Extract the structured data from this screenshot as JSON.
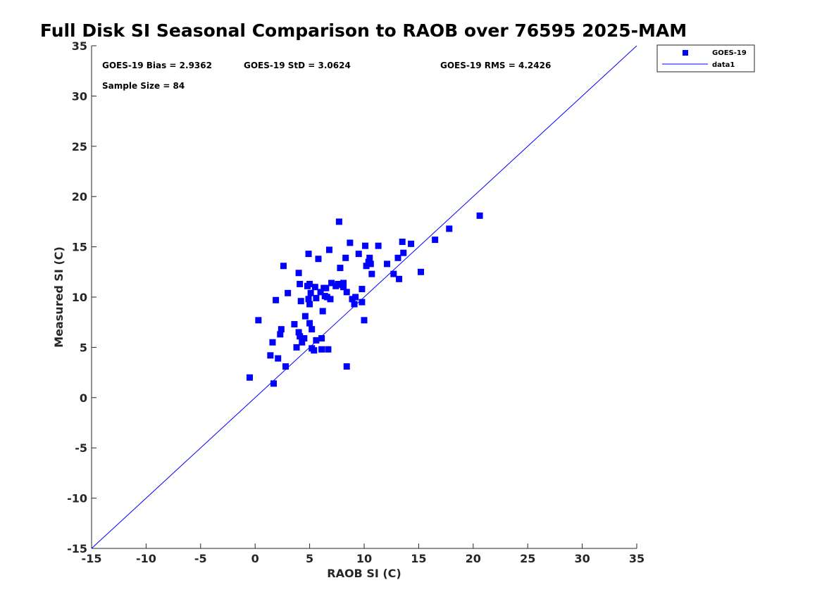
{
  "chart_data": {
    "type": "scatter",
    "title": "Full Disk SI Seasonal Comparison to RAOB over 76595 2025-MAM",
    "xlabel": "RAOB SI (C)",
    "ylabel": "Measured SI (C)",
    "xlim": [
      -15,
      35
    ],
    "ylim": [
      -15,
      35
    ],
    "xticks": [
      -15,
      -10,
      -5,
      0,
      5,
      10,
      15,
      20,
      25,
      30,
      35
    ],
    "yticks": [
      -15,
      -10,
      -5,
      0,
      5,
      10,
      15,
      20,
      25,
      30,
      35
    ],
    "xtick_labels": [
      "-15",
      "-10",
      "-5",
      "0",
      "5",
      "10",
      "15",
      "20",
      "25",
      "30",
      "35"
    ],
    "ytick_labels": [
      "-15",
      "-10",
      "-5",
      "0",
      "5",
      "10",
      "15",
      "20",
      "25",
      "30",
      "35"
    ],
    "grid": false,
    "legend_position": "top-right",
    "annotations": {
      "bias": "GOES-19 Bias = 2.9362",
      "std": "GOES-19 StD = 3.0624",
      "rms": "GOES-19 RMS = 4.2426",
      "sample": "Sample Size = 84"
    },
    "series": [
      {
        "name": "GOES-19",
        "kind": "marker",
        "marker": "square",
        "color": "#0000ff",
        "points": [
          [
            -0.5,
            2.0
          ],
          [
            0.3,
            7.7
          ],
          [
            1.4,
            4.2
          ],
          [
            1.6,
            5.5
          ],
          [
            1.7,
            1.4
          ],
          [
            1.9,
            9.7
          ],
          [
            2.1,
            3.9
          ],
          [
            2.3,
            6.3
          ],
          [
            2.4,
            6.8
          ],
          [
            2.6,
            13.1
          ],
          [
            2.8,
            3.1
          ],
          [
            3.0,
            10.4
          ],
          [
            3.6,
            7.3
          ],
          [
            3.8,
            5.0
          ],
          [
            4.0,
            12.4
          ],
          [
            4.0,
            6.5
          ],
          [
            4.1,
            6.1
          ],
          [
            4.1,
            11.3
          ],
          [
            4.2,
            9.6
          ],
          [
            4.3,
            5.5
          ],
          [
            4.5,
            5.9
          ],
          [
            4.6,
            8.1
          ],
          [
            4.8,
            11.1
          ],
          [
            4.9,
            14.3
          ],
          [
            4.9,
            9.8
          ],
          [
            5.0,
            9.3
          ],
          [
            5.0,
            11.3
          ],
          [
            5.0,
            7.4
          ],
          [
            5.1,
            10.4
          ],
          [
            5.2,
            6.8
          ],
          [
            5.2,
            4.9
          ],
          [
            5.4,
            4.7
          ],
          [
            5.5,
            11.0
          ],
          [
            5.6,
            9.9
          ],
          [
            5.6,
            5.7
          ],
          [
            5.8,
            13.8
          ],
          [
            6.0,
            10.5
          ],
          [
            6.1,
            4.8
          ],
          [
            6.1,
            5.9
          ],
          [
            6.2,
            8.6
          ],
          [
            6.3,
            10.9
          ],
          [
            6.4,
            10.1
          ],
          [
            6.5,
            10.9
          ],
          [
            6.7,
            4.8
          ],
          [
            6.8,
            14.7
          ],
          [
            6.9,
            9.8
          ],
          [
            7.0,
            11.4
          ],
          [
            7.4,
            11.1
          ],
          [
            7.6,
            11.3
          ],
          [
            7.7,
            17.5
          ],
          [
            7.8,
            12.9
          ],
          [
            8.0,
            11.2
          ],
          [
            8.1,
            11.4
          ],
          [
            8.3,
            13.9
          ],
          [
            8.4,
            10.5
          ],
          [
            8.4,
            3.1
          ],
          [
            8.7,
            15.4
          ],
          [
            8.9,
            9.8
          ],
          [
            9.1,
            9.3
          ],
          [
            9.2,
            10.0
          ],
          [
            9.5,
            14.3
          ],
          [
            9.8,
            10.8
          ],
          [
            9.8,
            9.5
          ],
          [
            10.0,
            7.7
          ],
          [
            10.1,
            15.1
          ],
          [
            10.2,
            13.1
          ],
          [
            10.4,
            13.5
          ],
          [
            10.6,
            13.3
          ],
          [
            10.7,
            12.3
          ],
          [
            11.3,
            15.1
          ],
          [
            12.1,
            13.3
          ],
          [
            12.7,
            12.3
          ],
          [
            13.1,
            13.9
          ],
          [
            13.2,
            11.8
          ],
          [
            13.5,
            15.5
          ],
          [
            13.6,
            14.4
          ],
          [
            14.3,
            15.3
          ],
          [
            15.2,
            12.5
          ],
          [
            16.5,
            15.7
          ],
          [
            17.8,
            16.8
          ],
          [
            20.6,
            18.1
          ],
          [
            6.6,
            10.0
          ],
          [
            8.1,
            11.0
          ],
          [
            10.5,
            13.9
          ]
        ]
      },
      {
        "name": "data1",
        "kind": "line",
        "color": "#0000ff",
        "points": [
          [
            -15,
            -15
          ],
          [
            35,
            35
          ]
        ]
      }
    ]
  }
}
